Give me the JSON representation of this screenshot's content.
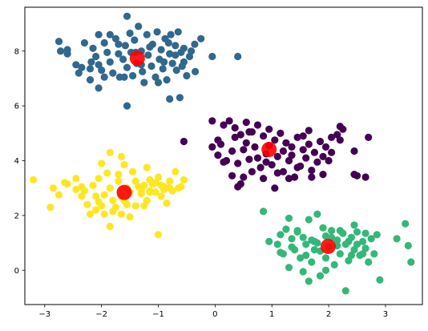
{
  "chart_data": {
    "type": "scatter",
    "title": "",
    "xlabel": "",
    "ylabel": "",
    "xlim": [
      -3.35,
      3.65
    ],
    "ylim": [
      -1.25,
      9.6
    ],
    "grid": false,
    "legend": "none",
    "xticks": [
      -3,
      -2,
      -1,
      0,
      1,
      2,
      3
    ],
    "yticks": [
      0,
      2,
      4,
      6,
      8
    ],
    "series": [
      {
        "color": "#31688e",
        "points": [
          [
            -1.55,
            9.27
          ],
          [
            -2.75,
            8.35
          ],
          [
            -2.72,
            8.0
          ],
          [
            -2.6,
            8.05
          ],
          [
            -2.45,
            7.5
          ],
          [
            -2.35,
            7.4
          ],
          [
            -2.15,
            8.1
          ],
          [
            -2.1,
            7.8
          ],
          [
            -2.05,
            7.5
          ],
          [
            -2.0,
            7.3
          ],
          [
            -2.05,
            8.6
          ],
          [
            -1.95,
            8.3
          ],
          [
            -1.9,
            7.95
          ],
          [
            -1.85,
            7.6
          ],
          [
            -1.8,
            7.2
          ],
          [
            -1.75,
            8.45
          ],
          [
            -1.7,
            7.9
          ],
          [
            -1.68,
            7.05
          ],
          [
            -1.62,
            7.7
          ],
          [
            -1.58,
            8.2
          ],
          [
            -1.55,
            7.4
          ],
          [
            -1.5,
            8.65
          ],
          [
            -1.48,
            7.95
          ],
          [
            -1.45,
            7.1
          ],
          [
            -1.42,
            8.4
          ],
          [
            -1.38,
            7.55
          ],
          [
            -1.35,
            8.9
          ],
          [
            -1.3,
            8.0
          ],
          [
            -1.28,
            7.25
          ],
          [
            -1.25,
            6.85
          ],
          [
            -1.2,
            8.6
          ],
          [
            -1.18,
            7.85
          ],
          [
            -1.12,
            7.45
          ],
          [
            -1.1,
            8.25
          ],
          [
            -1.05,
            7.05
          ],
          [
            -1.02,
            8.7
          ],
          [
            -0.98,
            7.7
          ],
          [
            -0.95,
            8.05
          ],
          [
            -0.92,
            7.35
          ],
          [
            -0.88,
            8.45
          ],
          [
            -0.85,
            6.95
          ],
          [
            -0.8,
            7.9
          ],
          [
            -0.78,
            8.6
          ],
          [
            -0.75,
            7.55
          ],
          [
            -0.7,
            8.2
          ],
          [
            -0.68,
            7.3
          ],
          [
            -0.65,
            8.7
          ],
          [
            -0.6,
            7.95
          ],
          [
            -0.58,
            7.45
          ],
          [
            -0.55,
            8.1
          ],
          [
            -0.5,
            7.1
          ],
          [
            -0.45,
            7.8
          ],
          [
            -0.42,
            8.0
          ],
          [
            -0.36,
            8.25
          ],
          [
            -0.25,
            8.45
          ],
          [
            -0.05,
            7.8
          ],
          [
            0.4,
            7.8
          ],
          [
            -0.8,
            6.25
          ],
          [
            -0.62,
            6.3
          ],
          [
            -1.55,
            6.0
          ],
          [
            -2.2,
            6.95
          ],
          [
            -2.05,
            6.65
          ],
          [
            -2.4,
            7.2
          ],
          [
            -2.2,
            7.35
          ],
          [
            -1.0,
            6.85
          ],
          [
            -1.6,
            7.05
          ],
          [
            -1.85,
            8.6
          ],
          [
            -1.4,
            7.95
          ],
          [
            -0.9,
            7.6
          ],
          [
            -0.35,
            7.25
          ],
          [
            -0.7,
            7.85
          ],
          [
            -1.15,
            8.15
          ],
          [
            -2.3,
            8.3
          ],
          [
            -2.6,
            7.9
          ],
          [
            -1.95,
            7.05
          ],
          [
            -1.3,
            7.5
          ],
          [
            -0.55,
            7.6
          ],
          [
            -0.82,
            8.3
          ],
          [
            -1.7,
            8.25
          ],
          [
            -2.18,
            7.6
          ]
        ]
      },
      {
        "color": "#440154",
        "points": [
          [
            -0.05,
            5.45
          ],
          [
            0.15,
            5.3
          ],
          [
            0.25,
            5.45
          ],
          [
            0.35,
            5.2
          ],
          [
            0.45,
            4.95
          ],
          [
            0.55,
            5.4
          ],
          [
            0.65,
            5.05
          ],
          [
            0.75,
            5.3
          ],
          [
            0.85,
            4.9
          ],
          [
            0.95,
            5.15
          ],
          [
            1.05,
            4.75
          ],
          [
            1.15,
            5.0
          ],
          [
            1.25,
            4.65
          ],
          [
            1.35,
            4.5
          ],
          [
            1.45,
            4.85
          ],
          [
            1.55,
            4.4
          ],
          [
            1.65,
            4.6
          ],
          [
            1.75,
            4.3
          ],
          [
            1.85,
            4.7
          ],
          [
            1.95,
            4.5
          ],
          [
            2.05,
            4.3
          ],
          [
            2.15,
            4.95
          ],
          [
            2.25,
            5.15
          ],
          [
            2.45,
            4.35
          ],
          [
            2.5,
            3.45
          ],
          [
            2.65,
            3.4
          ],
          [
            2.45,
            3.5
          ],
          [
            -0.05,
            4.5
          ],
          [
            0.05,
            4.2
          ],
          [
            0.1,
            4.6
          ],
          [
            0.2,
            4.0
          ],
          [
            0.3,
            4.35
          ],
          [
            0.4,
            3.9
          ],
          [
            0.5,
            4.4
          ],
          [
            0.6,
            4.05
          ],
          [
            0.7,
            4.5
          ],
          [
            0.8,
            3.75
          ],
          [
            0.9,
            4.25
          ],
          [
            1.0,
            3.85
          ],
          [
            1.1,
            4.15
          ],
          [
            1.2,
            3.6
          ],
          [
            1.3,
            4.0
          ],
          [
            1.4,
            3.4
          ],
          [
            1.5,
            3.8
          ],
          [
            1.6,
            4.1
          ],
          [
            1.7,
            3.65
          ],
          [
            1.8,
            3.95
          ],
          [
            1.9,
            3.5
          ],
          [
            2.0,
            4.0
          ],
          [
            0.5,
            3.4
          ],
          [
            0.45,
            3.15
          ],
          [
            0.4,
            3.05
          ],
          [
            0.3,
            3.45
          ],
          [
            0.65,
            3.6
          ],
          [
            0.85,
            3.35
          ],
          [
            1.05,
            3.0
          ],
          [
            1.3,
            3.35
          ],
          [
            1.7,
            3.4
          ],
          [
            2.7,
            4.85
          ],
          [
            2.2,
            4.75
          ],
          [
            -0.55,
            4.7
          ],
          [
            0.05,
            4.75
          ],
          [
            0.55,
            4.65
          ],
          [
            0.95,
            4.55
          ],
          [
            1.55,
            4.9
          ],
          [
            1.65,
            5.1
          ],
          [
            0.35,
            4.85
          ],
          [
            0.75,
            4.1
          ],
          [
            1.2,
            4.35
          ],
          [
            1.35,
            4.2
          ],
          [
            1.9,
            4.15
          ],
          [
            2.05,
            4.85
          ],
          [
            2.2,
            5.25
          ],
          [
            0.6,
            5.05
          ],
          [
            0.15,
            3.95
          ],
          [
            0.9,
            3.95
          ],
          [
            1.1,
            3.55
          ],
          [
            1.45,
            3.75
          ]
        ]
      },
      {
        "color": "#fde725",
        "points": [
          [
            -3.2,
            3.3
          ],
          [
            -2.9,
            2.3
          ],
          [
            -2.85,
            3.0
          ],
          [
            -2.75,
            2.75
          ],
          [
            -2.65,
            3.2
          ],
          [
            -2.6,
            3.15
          ],
          [
            -2.45,
            3.35
          ],
          [
            -2.35,
            2.7
          ],
          [
            -2.3,
            2.9
          ],
          [
            -2.25,
            2.4
          ],
          [
            -2.15,
            3.1
          ],
          [
            -2.1,
            2.7
          ],
          [
            -2.05,
            3.35
          ],
          [
            -2.0,
            2.35
          ],
          [
            -1.95,
            2.05
          ],
          [
            -1.9,
            3.55
          ],
          [
            -1.85,
            3.0
          ],
          [
            -1.8,
            2.55
          ],
          [
            -1.75,
            2.3
          ],
          [
            -1.7,
            3.25
          ],
          [
            -1.65,
            2.7
          ],
          [
            -1.6,
            3.85
          ],
          [
            -1.55,
            2.4
          ],
          [
            -1.5,
            2.85
          ],
          [
            -1.45,
            3.6
          ],
          [
            -1.4,
            2.35
          ],
          [
            -1.35,
            3.05
          ],
          [
            -1.3,
            2.8
          ],
          [
            -1.25,
            3.1
          ],
          [
            -1.2,
            2.55
          ],
          [
            -1.15,
            2.9
          ],
          [
            -1.1,
            3.15
          ],
          [
            -1.05,
            2.85
          ],
          [
            -1.0,
            3.4
          ],
          [
            -0.95,
            2.7
          ],
          [
            -0.9,
            3.05
          ],
          [
            -0.85,
            2.45
          ],
          [
            -0.8,
            3.25
          ],
          [
            -0.75,
            2.9
          ],
          [
            -0.7,
            3.6
          ],
          [
            -0.65,
            3.0
          ],
          [
            -0.55,
            3.3
          ],
          [
            -0.6,
            3.05
          ],
          [
            -2.0,
            3.9
          ],
          [
            -1.85,
            4.3
          ],
          [
            -1.65,
            4.15
          ],
          [
            -1.7,
            3.5
          ],
          [
            -1.0,
            1.3
          ],
          [
            -1.85,
            1.6
          ],
          [
            -2.2,
            2.05
          ],
          [
            -1.5,
            1.95
          ],
          [
            -2.05,
            2.5
          ],
          [
            -1.25,
            2.35
          ],
          [
            -1.4,
            3.25
          ],
          [
            -0.95,
            3.1
          ],
          [
            -1.15,
            3.3
          ],
          [
            -1.55,
            3.0
          ],
          [
            -2.35,
            3.05
          ],
          [
            -0.8,
            3.0
          ],
          [
            -1.3,
            2.95
          ],
          [
            -1.05,
            3.2
          ],
          [
            -1.95,
            2.75
          ],
          [
            -2.1,
            2.2
          ],
          [
            -1.8,
            2.15
          ],
          [
            -1.65,
            2.05
          ],
          [
            -2.45,
            2.95
          ],
          [
            -1.2,
            3.75
          ],
          [
            -1.15,
            2.85
          ],
          [
            -0.9,
            2.95
          ],
          [
            -1.6,
            2.55
          ]
        ]
      },
      {
        "color": "#35b779",
        "points": [
          [
            0.85,
            2.15
          ],
          [
            0.95,
            1.05
          ],
          [
            1.1,
            0.95
          ],
          [
            1.15,
            1.3
          ],
          [
            1.2,
            0.6
          ],
          [
            1.25,
            1.5
          ],
          [
            1.3,
            1.9
          ],
          [
            1.35,
            1.15
          ],
          [
            1.4,
            0.75
          ],
          [
            1.45,
            1.4
          ],
          [
            1.5,
            0.45
          ],
          [
            1.55,
            1.2
          ],
          [
            1.6,
            0.95
          ],
          [
            1.65,
            1.85
          ],
          [
            1.7,
            0.3
          ],
          [
            1.75,
            1.05
          ],
          [
            1.8,
            2.05
          ],
          [
            1.85,
            0.7
          ],
          [
            1.9,
            1.55
          ],
          [
            1.95,
            1.25
          ],
          [
            2.0,
            0.85
          ],
          [
            2.05,
            1.45
          ],
          [
            2.1,
            0.2
          ],
          [
            2.15,
            1.1
          ],
          [
            2.2,
            0.6
          ],
          [
            2.25,
            1.35
          ],
          [
            2.3,
            0.95
          ],
          [
            2.35,
            0.35
          ],
          [
            2.4,
            1.2
          ],
          [
            2.45,
            0.75
          ],
          [
            2.5,
            1.4
          ],
          [
            2.55,
            0.55
          ],
          [
            2.6,
            1.05
          ],
          [
            2.65,
            0.8
          ],
          [
            2.7,
            0.3
          ],
          [
            2.75,
            1.15
          ],
          [
            2.8,
            0.6
          ],
          [
            1.3,
            0.1
          ],
          [
            1.55,
            -0.05
          ],
          [
            1.65,
            -0.4
          ],
          [
            1.85,
            -0.2
          ],
          [
            1.95,
            0.0
          ],
          [
            2.3,
            -0.75
          ],
          [
            2.9,
            -0.35
          ],
          [
            3.2,
            1.15
          ],
          [
            3.35,
            1.7
          ],
          [
            3.4,
            0.9
          ],
          [
            3.45,
            0.3
          ],
          [
            2.45,
            1.65
          ],
          [
            2.65,
            1.35
          ],
          [
            1.45,
            1.45
          ],
          [
            1.35,
            0.85
          ],
          [
            1.75,
            0.75
          ],
          [
            2.15,
            0.9
          ],
          [
            2.6,
            0.6
          ],
          [
            2.35,
            1.05
          ],
          [
            1.95,
            0.45
          ],
          [
            1.7,
            1.1
          ],
          [
            1.15,
            0.65
          ],
          [
            2.85,
            1.3
          ],
          [
            2.5,
            0.95
          ],
          [
            2.05,
            1.2
          ],
          [
            1.6,
            0.55
          ],
          [
            1.8,
            1.0
          ],
          [
            2.2,
            1.45
          ],
          [
            2.4,
            0.55
          ]
        ]
      }
    ],
    "centroids": {
      "color": "#ff0000",
      "points": [
        [
          -1.37,
          7.74
        ],
        [
          0.95,
          4.41
        ],
        [
          -1.6,
          2.84
        ],
        [
          1.99,
          0.87
        ]
      ]
    }
  }
}
